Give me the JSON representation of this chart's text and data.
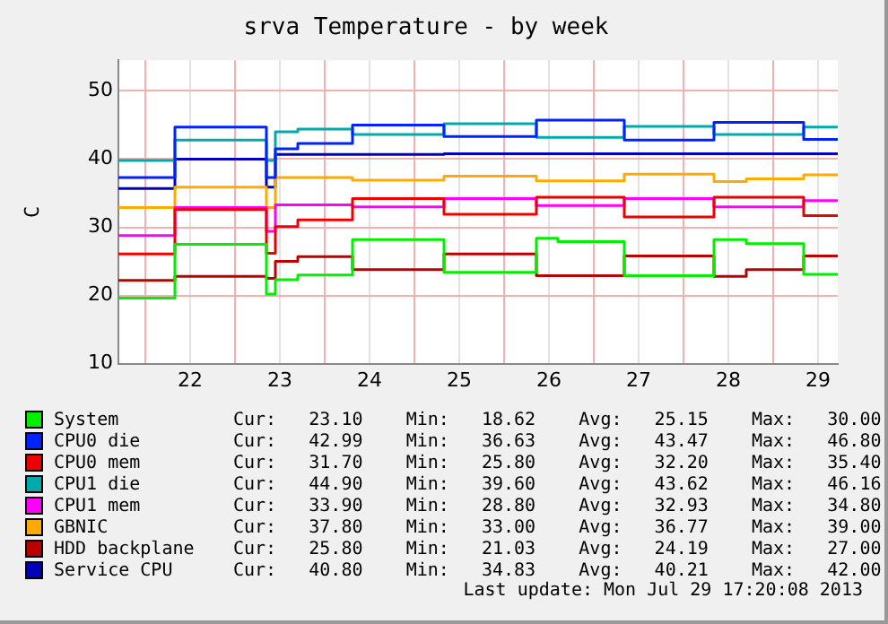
{
  "chart_data": {
    "type": "step",
    "title": "srva Temperature - by week",
    "ylabel": "C",
    "x": [
      21.7,
      22.33,
      23.35,
      23.45,
      23.7,
      24.31,
      25.33,
      26.36,
      26.6,
      27.34,
      28.34,
      28.7,
      29.34,
      29.72
    ],
    "xlim": [
      21.7,
      29.72
    ],
    "xticks": [
      {
        "value": 22,
        "label": null
      },
      {
        "value": 22.5,
        "label": "22"
      },
      {
        "value": 23,
        "label": null
      },
      {
        "value": 23.5,
        "label": "23"
      },
      {
        "value": 24,
        "label": null
      },
      {
        "value": 24.5,
        "label": "24"
      },
      {
        "value": 25,
        "label": null
      },
      {
        "value": 25.5,
        "label": "25"
      },
      {
        "value": 26,
        "label": null
      },
      {
        "value": 26.5,
        "label": "26"
      },
      {
        "value": 27,
        "label": null
      },
      {
        "value": 27.5,
        "label": "27"
      },
      {
        "value": 28,
        "label": null
      },
      {
        "value": 28.5,
        "label": "28"
      },
      {
        "value": 29,
        "label": null
      },
      {
        "value": 29.5,
        "label": "29"
      }
    ],
    "ylim": [
      10,
      54.5
    ],
    "yticks": [
      10,
      20,
      30,
      40,
      50
    ],
    "grid": true,
    "legend": "bottom",
    "marker": "none",
    "line_style": "solid",
    "series": [
      {
        "name": "System",
        "color": "#00ee00",
        "values": [
          19.6,
          27.5,
          20.2,
          22.3,
          23.0,
          28.2,
          23.4,
          28.4,
          27.9,
          22.9,
          28.2,
          27.6,
          23.1,
          23.1
        ]
      },
      {
        "name": "CPU0 die",
        "color": "#0022ff",
        "values": [
          37.3,
          44.7,
          37.3,
          41.5,
          42.3,
          45.0,
          43.3,
          45.7,
          45.7,
          42.8,
          45.4,
          45.4,
          42.9,
          43.0
        ]
      },
      {
        "name": "CPU0 mem",
        "color": "#ee0000",
        "values": [
          26.1,
          32.6,
          26.2,
          30.1,
          31.1,
          34.2,
          31.9,
          34.4,
          34.4,
          31.5,
          34.4,
          34.4,
          31.7,
          31.7
        ]
      },
      {
        "name": "CPU1 die",
        "color": "#00aaaa",
        "values": [
          39.8,
          42.8,
          39.8,
          44.0,
          44.4,
          43.6,
          45.2,
          43.2,
          43.2,
          44.8,
          43.6,
          43.6,
          44.7,
          44.9
        ]
      },
      {
        "name": "CPU1 mem",
        "color": "#ff00ff",
        "values": [
          28.8,
          32.9,
          29.4,
          33.3,
          33.3,
          33.0,
          34.2,
          33.2,
          33.2,
          34.2,
          33.0,
          33.0,
          33.9,
          33.9
        ]
      },
      {
        "name": "GBNIC",
        "color": "#ffaa00",
        "values": [
          32.9,
          35.9,
          32.9,
          37.3,
          37.3,
          36.9,
          37.5,
          36.8,
          36.8,
          37.8,
          36.7,
          37.1,
          37.7,
          37.8
        ]
      },
      {
        "name": "HDD backplane",
        "color": "#bb0000",
        "values": [
          22.2,
          22.8,
          22.5,
          25.0,
          25.7,
          23.8,
          26.1,
          22.9,
          22.9,
          25.8,
          22.8,
          23.8,
          25.8,
          25.8
        ]
      },
      {
        "name": "Service CPU",
        "color": "#0000bb",
        "values": [
          35.7,
          40.0,
          35.9,
          40.7,
          40.7,
          40.7,
          40.8,
          40.8,
          40.8,
          40.8,
          40.8,
          40.8,
          40.8,
          40.8
        ]
      }
    ],
    "annotations": [
      "Cur:   23.10    Min:   18.62    Avg:   25.15    Max:   30.00",
      "Cur:   42.99    Min:   36.63    Avg:   43.47    Max:   46.80",
      "Cur:   31.70    Min:   25.80    Avg:   32.20    Max:   35.40",
      "Cur:   44.90    Min:   39.60    Avg:   43.62    Max:   46.16",
      "Cur:   33.90    Min:   28.80    Avg:   32.93    Max:   34.80",
      "Cur:   37.80    Min:   33.00    Avg:   36.77    Max:   39.00",
      "Cur:   25.80    Min:   21.03    Avg:   24.19    Max:   27.00",
      "Cur:   40.80    Min:   34.83    Avg:   40.21    Max:   42.00",
      "Last update: Mon Jul 29 17:20:08 2013"
    ]
  }
}
